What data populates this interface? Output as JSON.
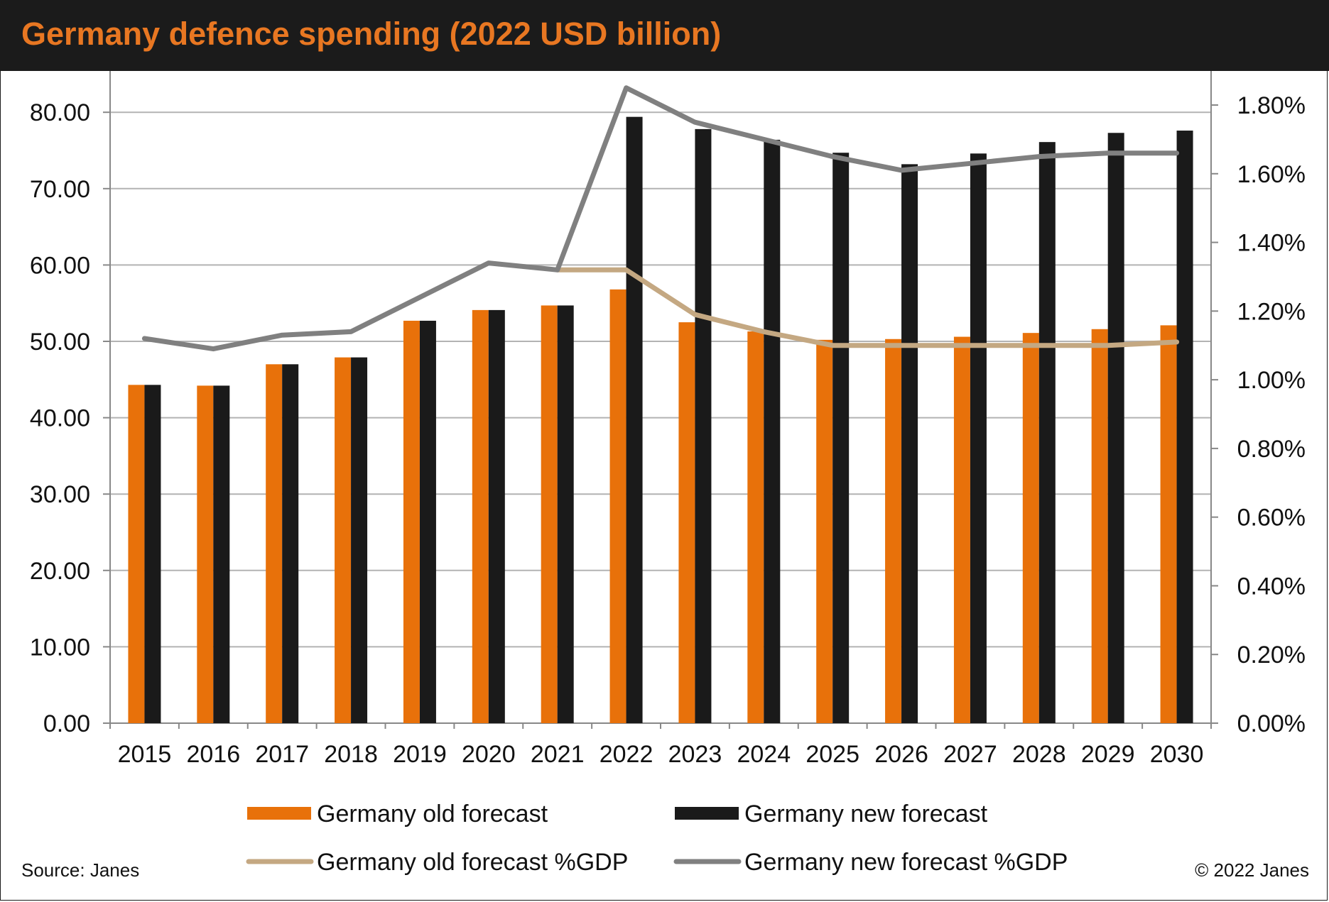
{
  "title": "Germany defence spending (2022 USD billion)",
  "source": "Source: Janes",
  "copyright": "© 2022 Janes",
  "chart_data": {
    "type": "bar",
    "title": "Germany defence spending (2022 USD billion)",
    "categories": [
      "2015",
      "2016",
      "2017",
      "2018",
      "2019",
      "2020",
      "2021",
      "2022",
      "2023",
      "2024",
      "2025",
      "2026",
      "2027",
      "2028",
      "2029",
      "2030"
    ],
    "series": [
      {
        "name": "Germany old forecast",
        "kind": "bar",
        "axis": "left",
        "color": "#e8710a",
        "values": [
          44.3,
          44.2,
          47.0,
          47.9,
          52.7,
          54.1,
          54.7,
          56.8,
          52.5,
          51.3,
          50.2,
          50.3,
          50.6,
          51.1,
          51.6,
          52.1
        ]
      },
      {
        "name": "Germany new forecast",
        "kind": "bar",
        "axis": "left",
        "color": "#1a1a1a",
        "values": [
          44.3,
          44.2,
          47.0,
          47.9,
          52.7,
          54.1,
          54.7,
          79.4,
          77.8,
          76.4,
          74.7,
          73.2,
          74.6,
          76.1,
          77.3,
          77.6
        ]
      },
      {
        "name": "Germany old forecast %GDP",
        "kind": "line",
        "axis": "right",
        "color": "#c4a882",
        "values": [
          null,
          null,
          null,
          null,
          null,
          null,
          1.32,
          1.32,
          1.19,
          1.14,
          1.1,
          1.1,
          1.1,
          1.1,
          1.1,
          1.11
        ]
      },
      {
        "name": "Germany new forecast %GDP",
        "kind": "line",
        "axis": "right",
        "color": "#808080",
        "values": [
          1.12,
          1.09,
          1.13,
          1.14,
          1.24,
          1.34,
          1.32,
          1.85,
          1.75,
          1.7,
          1.65,
          1.61,
          1.63,
          1.65,
          1.66,
          1.66
        ]
      }
    ],
    "y_left": {
      "ylim": [
        0,
        85
      ],
      "ticks": [
        0,
        10,
        20,
        30,
        40,
        50,
        60,
        70,
        80
      ],
      "tick_labels": [
        "0.00",
        "10.00",
        "20.00",
        "30.00",
        "40.00",
        "50.00",
        "60.00",
        "70.00",
        "80.00"
      ]
    },
    "y_right": {
      "ylim": [
        0,
        1.9
      ],
      "ticks": [
        0,
        0.2,
        0.4,
        0.6,
        0.8,
        1.0,
        1.2,
        1.4,
        1.6,
        1.8
      ],
      "tick_labels": [
        "0.00%",
        "0.20%",
        "0.40%",
        "0.60%",
        "0.80%",
        "1.00%",
        "1.20%",
        "1.40%",
        "1.60%",
        "1.80%"
      ]
    },
    "grid": true,
    "legend_position": "bottom"
  }
}
